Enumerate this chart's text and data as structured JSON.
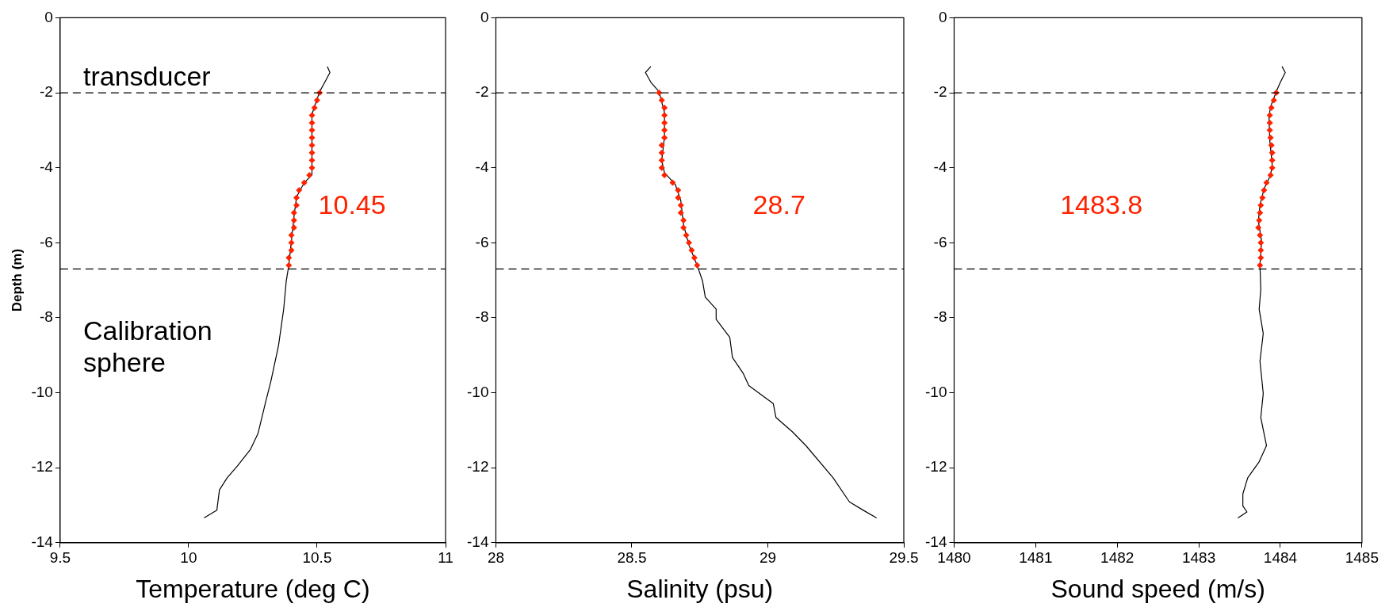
{
  "chart_data": [
    {
      "type": "line",
      "xlabel": "Temperature (deg C)",
      "ylabel": "Depth (m)",
      "xlim": [
        9.5,
        11
      ],
      "xticks": [
        9.5,
        10,
        10.5,
        11
      ],
      "ylim": [
        -14,
        0
      ],
      "yticks": [
        -14,
        -12,
        -10,
        -8,
        -6,
        -4,
        -2,
        0
      ],
      "grid": false,
      "series": [
        {
          "type": "line",
          "color": "#000000",
          "marker": "none",
          "x": [
            10.54,
            10.55,
            10.53,
            10.51,
            10.49,
            10.48,
            10.48,
            10.45,
            10.42,
            10.41,
            10.4,
            10.39,
            10.38,
            10.37,
            10.35,
            10.32,
            10.3,
            10.27,
            10.24,
            10.19,
            10.15,
            10.12,
            10.11,
            10.06
          ],
          "values": [
            -1.3,
            -1.46,
            -1.72,
            -1.97,
            -2.37,
            -2.58,
            -4.19,
            -4.4,
            -4.78,
            -5.31,
            -5.95,
            -6.6,
            -7.02,
            -7.77,
            -8.74,
            -9.7,
            -10.24,
            -11.09,
            -11.52,
            -11.95,
            -12.27,
            -12.59,
            -13.13,
            -13.34
          ]
        },
        {
          "type": "scatter",
          "color": "#ff2200",
          "marker": "diamond",
          "x": [
            10.51,
            10.5,
            10.49,
            10.48,
            10.48,
            10.48,
            10.48,
            10.48,
            10.48,
            10.48,
            10.48,
            10.47,
            10.45,
            10.43,
            10.42,
            10.42,
            10.41,
            10.41,
            10.41,
            10.4,
            10.4,
            10.4,
            10.39,
            10.39
          ],
          "values": [
            -2,
            -2.2,
            -2.4,
            -2.6,
            -2.8,
            -3,
            -3.2,
            -3.4,
            -3.6,
            -3.8,
            -4,
            -4.2,
            -4.4,
            -4.6,
            -4.8,
            -5,
            -5.2,
            -5.4,
            -5.6,
            -5.8,
            -6,
            -6.2,
            -6.4,
            -6.6
          ]
        }
      ],
      "ref_lines": [
        {
          "axis": "y",
          "value": -2,
          "color": "#000000",
          "line_style": "dashed"
        },
        {
          "axis": "y",
          "value": -6.7,
          "color": "#000000",
          "line_style": "dashed"
        }
      ],
      "annotations": [
        "10.45",
        "transducer",
        "Calibration sphere"
      ]
    },
    {
      "type": "line",
      "xlabel": "Salinity (psu)",
      "xlim": [
        28,
        29.5
      ],
      "xticks": [
        28,
        28.5,
        29,
        29.5
      ],
      "ylim": [
        -14,
        0
      ],
      "yticks": [
        -14,
        -12,
        -10,
        -8,
        -6,
        -4,
        -2,
        0
      ],
      "grid": false,
      "series": [
        {
          "type": "line",
          "color": "#000000",
          "marker": "none",
          "x": [
            28.57,
            28.55,
            28.57,
            28.6,
            28.62,
            28.62,
            28.61,
            28.62,
            28.66,
            28.68,
            28.69,
            28.71,
            28.74,
            28.76,
            28.77,
            28.81,
            28.81,
            28.86,
            28.87,
            28.91,
            28.93,
            29.02,
            29.03,
            29.09,
            29.14,
            29.24,
            29.3,
            29.35,
            29.4
          ],
          "values": [
            -1.3,
            -1.46,
            -1.72,
            -1.97,
            -2.53,
            -3.17,
            -3.81,
            -4.13,
            -4.45,
            -4.88,
            -5.52,
            -6.06,
            -6.6,
            -7.02,
            -7.45,
            -7.77,
            -8.04,
            -8.52,
            -9.06,
            -9.49,
            -9.81,
            -10.29,
            -10.66,
            -11.04,
            -11.41,
            -12.27,
            -12.91,
            -13.13,
            -13.34
          ]
        },
        {
          "type": "scatter",
          "color": "#ff2200",
          "marker": "diamond",
          "x": [
            28.6,
            28.61,
            28.62,
            28.62,
            28.62,
            28.62,
            28.62,
            28.61,
            28.61,
            28.61,
            28.61,
            28.62,
            28.65,
            28.67,
            28.67,
            28.68,
            28.68,
            28.69,
            28.69,
            28.7,
            28.71,
            28.72,
            28.73,
            28.74
          ],
          "values": [
            -2,
            -2.2,
            -2.4,
            -2.6,
            -2.8,
            -3,
            -3.2,
            -3.4,
            -3.6,
            -3.8,
            -4,
            -4.2,
            -4.4,
            -4.6,
            -4.8,
            -5,
            -5.2,
            -5.4,
            -5.6,
            -5.8,
            -6,
            -6.2,
            -6.4,
            -6.6
          ]
        }
      ],
      "ref_lines": [
        {
          "axis": "y",
          "value": -2,
          "color": "#000000",
          "line_style": "dashed"
        },
        {
          "axis": "y",
          "value": -6.7,
          "color": "#000000",
          "line_style": "dashed"
        }
      ],
      "annotations": [
        "28.7"
      ]
    },
    {
      "type": "line",
      "xlabel": "Sound speed (m/s)",
      "xlim": [
        1480,
        1485
      ],
      "xticks": [
        1480,
        1481,
        1482,
        1483,
        1484,
        1485
      ],
      "ylim": [
        -14,
        0
      ],
      "yticks": [
        -14,
        -12,
        -10,
        -8,
        -6,
        -4,
        -2,
        0
      ],
      "grid": false,
      "series": [
        {
          "type": "line",
          "color": "#000000",
          "marker": "none",
          "x": [
            1484.02,
            1484.06,
            1484.0,
            1483.95,
            1483.88,
            1483.86,
            1483.87,
            1483.9,
            1483.88,
            1483.8,
            1483.75,
            1483.73,
            1483.77,
            1483.75,
            1483.76,
            1483.74,
            1483.79,
            1483.75,
            1483.79,
            1483.76,
            1483.83,
            1483.74,
            1483.6,
            1483.54,
            1483.54,
            1483.59,
            1483.48
          ],
          "values": [
            -1.3,
            -1.46,
            -1.72,
            -1.97,
            -2.37,
            -2.64,
            -3.28,
            -3.92,
            -4.19,
            -4.56,
            -4.99,
            -5.42,
            -5.95,
            -6.6,
            -7.24,
            -7.77,
            -8.42,
            -9.16,
            -10.02,
            -10.66,
            -11.41,
            -11.84,
            -12.27,
            -12.7,
            -13.02,
            -13.18,
            -13.34
          ]
        },
        {
          "type": "scatter",
          "color": "#ff2200",
          "marker": "diamond",
          "x": [
            1483.95,
            1483.92,
            1483.89,
            1483.87,
            1483.87,
            1483.87,
            1483.88,
            1483.89,
            1483.9,
            1483.9,
            1483.9,
            1483.88,
            1483.83,
            1483.8,
            1483.78,
            1483.76,
            1483.75,
            1483.74,
            1483.73,
            1483.75,
            1483.76,
            1483.76,
            1483.76,
            1483.75
          ],
          "values": [
            -2,
            -2.2,
            -2.4,
            -2.6,
            -2.8,
            -3,
            -3.2,
            -3.4,
            -3.6,
            -3.8,
            -4,
            -4.2,
            -4.4,
            -4.6,
            -4.8,
            -5,
            -5.2,
            -5.4,
            -5.6,
            -5.8,
            -6,
            -6.2,
            -6.4,
            -6.6
          ]
        }
      ],
      "ref_lines": [
        {
          "axis": "y",
          "value": -2,
          "color": "#000000",
          "line_style": "dashed"
        },
        {
          "axis": "y",
          "value": -6.7,
          "color": "#000000",
          "line_style": "dashed"
        }
      ],
      "annotations": [
        "1483.8"
      ]
    }
  ]
}
